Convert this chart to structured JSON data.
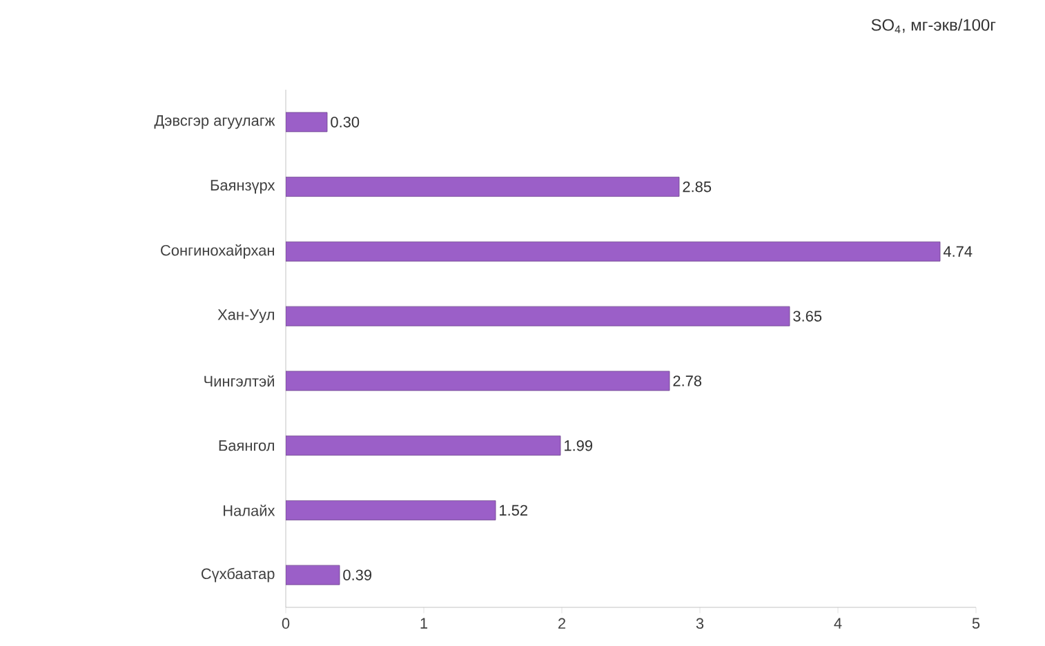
{
  "chart_data": {
    "type": "bar",
    "orientation": "horizontal",
    "title": "SO$_{4}$, мг-экв/100г",
    "categories": [
      "Дэвсгэр агуулагж",
      "Баянзүрх",
      "Сонгинохайрхан",
      "Хан-Уул",
      "Чингэлтэй",
      "Баянгол",
      "Налайх",
      "Сүхбаатар"
    ],
    "values": [
      0.3,
      2.85,
      4.74,
      3.65,
      2.78,
      1.99,
      1.52,
      0.39
    ],
    "color": "#9b5fc8",
    "xlim": [
      0,
      5
    ],
    "xticks": [
      0,
      1,
      2,
      3,
      4,
      5
    ],
    "value_labels": [
      "0.30",
      "2.85",
      "4.74",
      "3.65",
      "2.78",
      "1.99",
      "1.52",
      "0.39"
    ],
    "grid": false
  }
}
